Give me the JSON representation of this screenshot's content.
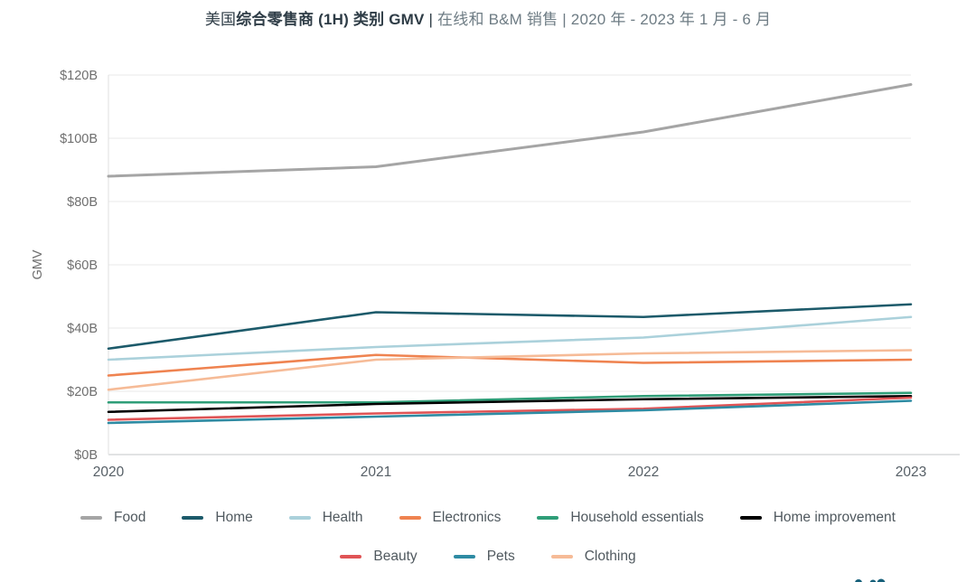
{
  "title": {
    "part1": "美国",
    "part2_bold": "综合零售商 (1H) 类别 GMV",
    "part3": " | ",
    "part4_muted": "在线和 B&M 销售 | 2020 年 - 2023 年 1 月 - 6 月"
  },
  "chart_data": {
    "type": "line",
    "x": [
      2020,
      2021,
      2022,
      2023
    ],
    "x_tick_labels": [
      "2020",
      "2021",
      "2022",
      "2023"
    ],
    "ylabel": "GMV",
    "ylim": [
      0,
      120
    ],
    "y_ticks": [
      0,
      20,
      40,
      60,
      80,
      100,
      120
    ],
    "y_tick_labels": [
      "$0B",
      "$20B",
      "$40B",
      "$60B",
      "$80B",
      "$100B",
      "$120B"
    ],
    "grid": true,
    "legend_position": "bottom",
    "units": "billions USD",
    "series": [
      {
        "name": "Food",
        "color": "#a5a5a5",
        "values": [
          88,
          91,
          102,
          117
        ]
      },
      {
        "name": "Home",
        "color": "#1c5a6a",
        "values": [
          33.5,
          45,
          43.5,
          47.5
        ]
      },
      {
        "name": "Health",
        "color": "#abd1db",
        "values": [
          30,
          34,
          37,
          43.5
        ]
      },
      {
        "name": "Electronics",
        "color": "#ef8350",
        "values": [
          25,
          31.5,
          29,
          30
        ]
      },
      {
        "name": "Household essentials",
        "color": "#2f9e78",
        "values": [
          16.5,
          16.5,
          18.5,
          19.5
        ]
      },
      {
        "name": "Home improvement",
        "color": "#000000",
        "values": [
          13.5,
          16,
          17.5,
          18.5
        ]
      },
      {
        "name": "Beauty",
        "color": "#e05456",
        "values": [
          11,
          13,
          14.5,
          18
        ]
      },
      {
        "name": "Pets",
        "color": "#2e8ba3",
        "values": [
          10,
          12,
          14,
          17
        ]
      },
      {
        "name": "Clothing",
        "color": "#f6bb97",
        "values": [
          20.5,
          30,
          32,
          33
        ]
      }
    ],
    "legend_rows": [
      [
        "Food",
        "Home",
        "Health",
        "Electronics",
        "Household essentials",
        "Home improvement"
      ],
      [
        "Beauty",
        "Pets",
        "Clothing"
      ]
    ]
  },
  "branding": {
    "partial_logo_color": "#16607a"
  }
}
